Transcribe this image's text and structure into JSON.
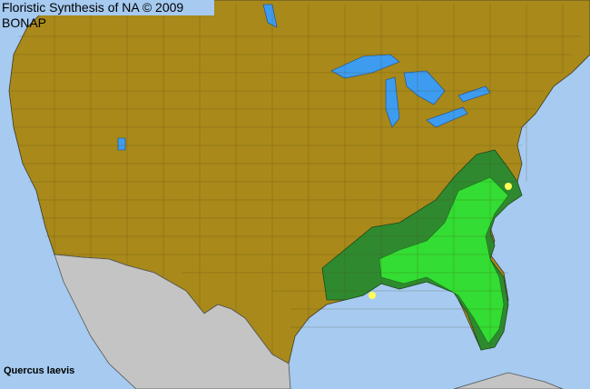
{
  "header": {
    "title": "Floristic Synthesis of NA © 2009 BONAP"
  },
  "species": {
    "name": "Quercus laevis"
  },
  "legend_colors": {
    "ocean": "#a6caf0",
    "present_absent_land": "#a8891a",
    "state_present": "#2f8a2f",
    "county_present": "#33dd33",
    "other_record": "#ffff55",
    "outside_region": "#c4c4c4",
    "lakes": "#3d9cf0"
  }
}
